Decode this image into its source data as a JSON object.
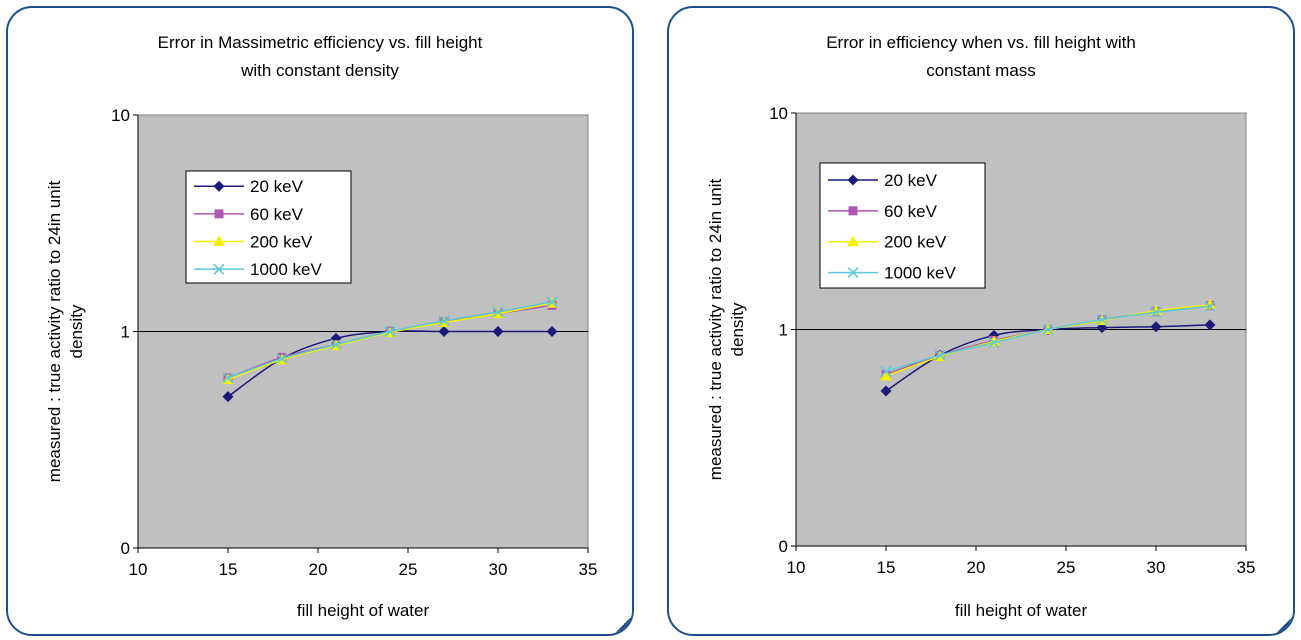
{
  "chart_data": [
    {
      "type": "line",
      "title": [
        "Error in Massimetric efficiency vs. fill height",
        "with constant density"
      ],
      "xlabel": "fill height of water",
      "ylabel": [
        "measured : true activity ratio to 24in unit",
        "density"
      ],
      "xlim": [
        10,
        35
      ],
      "xticks": [
        10,
        15,
        20,
        25,
        30,
        35
      ],
      "yscale": "log",
      "ytick_labels": [
        {
          "value": 0.1,
          "label": "0"
        },
        {
          "value": 1,
          "label": "1"
        },
        {
          "value": 10,
          "label": "10"
        }
      ],
      "ylim": [
        0.1,
        10
      ],
      "grid": "y-major",
      "legend": "top-left",
      "x": [
        15,
        18,
        21,
        24,
        27,
        30,
        33
      ],
      "series": [
        {
          "name": "20 keV",
          "color": "#1c1a78",
          "marker": "diamond",
          "values": [
            0.5,
            0.75,
            0.93,
            1.0,
            1.0,
            1.0,
            1.0
          ]
        },
        {
          "name": "60 keV",
          "color": "#b055b4",
          "marker": "square",
          "values": [
            0.61,
            0.76,
            0.87,
            1.0,
            1.11,
            1.21,
            1.32
          ]
        },
        {
          "name": "200 keV",
          "color": "#f4f000",
          "marker": "triangle",
          "values": [
            0.6,
            0.74,
            0.86,
            0.99,
            1.1,
            1.21,
            1.35
          ]
        },
        {
          "name": "1000 keV",
          "color": "#5ec8d8",
          "marker": "x",
          "values": [
            0.61,
            0.75,
            0.87,
            1.0,
            1.12,
            1.23,
            1.37
          ]
        }
      ]
    },
    {
      "type": "line",
      "title": [
        "Error in efficiency when vs. fill height with",
        "constant mass"
      ],
      "xlabel": "fill height of water",
      "ylabel": [
        "measured : true activity ratio to 24in unit",
        "density"
      ],
      "xlim": [
        10,
        35
      ],
      "xticks": [
        10,
        15,
        20,
        25,
        30,
        35
      ],
      "yscale": "log",
      "ytick_labels": [
        {
          "value": 0.1,
          "label": "0"
        },
        {
          "value": 1,
          "label": "1"
        },
        {
          "value": 10,
          "label": "10"
        }
      ],
      "ylim": [
        0.1,
        10
      ],
      "grid": "y-major",
      "legend": "top-left",
      "x": [
        15,
        18,
        21,
        24,
        27,
        30,
        33
      ],
      "series": [
        {
          "name": "20 keV",
          "color": "#1c1a78",
          "marker": "diamond",
          "values": [
            0.52,
            0.76,
            0.94,
            1.0,
            1.02,
            1.03,
            1.05
          ]
        },
        {
          "name": "60 keV",
          "color": "#b055b4",
          "marker": "square",
          "values": [
            0.62,
            0.76,
            0.89,
            1.0,
            1.11,
            1.21,
            1.29
          ]
        },
        {
          "name": "200 keV",
          "color": "#f4f000",
          "marker": "triangle",
          "values": [
            0.61,
            0.75,
            0.88,
            1.0,
            1.1,
            1.22,
            1.3
          ]
        },
        {
          "name": "1000 keV",
          "color": "#5ec8d8",
          "marker": "x",
          "values": [
            0.64,
            0.76,
            0.87,
            1.0,
            1.11,
            1.2,
            1.28
          ]
        }
      ]
    }
  ]
}
